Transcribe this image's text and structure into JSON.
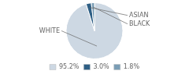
{
  "chart_data": {
    "type": "pie",
    "categories": [
      "WHITE",
      "ASIAN",
      "BLACK"
    ],
    "values": [
      95.2,
      3.0,
      1.8
    ],
    "value_labels": [
      "95.2%",
      "3.0%",
      "1.8%"
    ],
    "colors": [
      "#cdd8e3",
      "#2e5f85",
      "#7a9db5"
    ],
    "legend": "bottom"
  }
}
